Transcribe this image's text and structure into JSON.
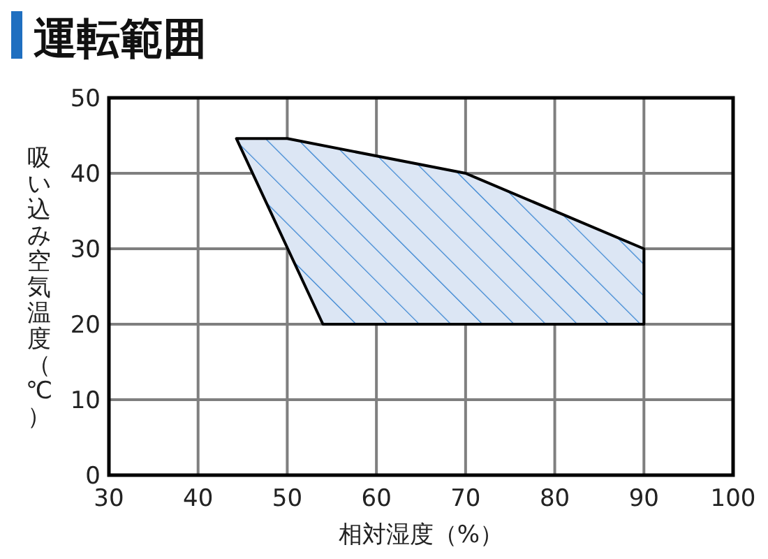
{
  "chart_data": {
    "type": "area",
    "title": "運転範囲",
    "xlabel": "相対湿度（%）",
    "ylabel": "吸い込み空気温度（℃）",
    "xlim": [
      30,
      100
    ],
    "ylim": [
      0,
      50
    ],
    "xticks": [
      30,
      40,
      50,
      60,
      70,
      80,
      90,
      100
    ],
    "yticks": [
      0,
      10,
      20,
      30,
      40,
      50
    ],
    "grid": true,
    "series": [
      {
        "color": "#dce6f4",
        "x": [
          44.3,
          50,
          70,
          90,
          90,
          54,
          44.3
        ],
        "values": [
          44.6,
          44.6,
          40,
          30,
          20,
          20,
          44.6
        ]
      }
    ]
  }
}
